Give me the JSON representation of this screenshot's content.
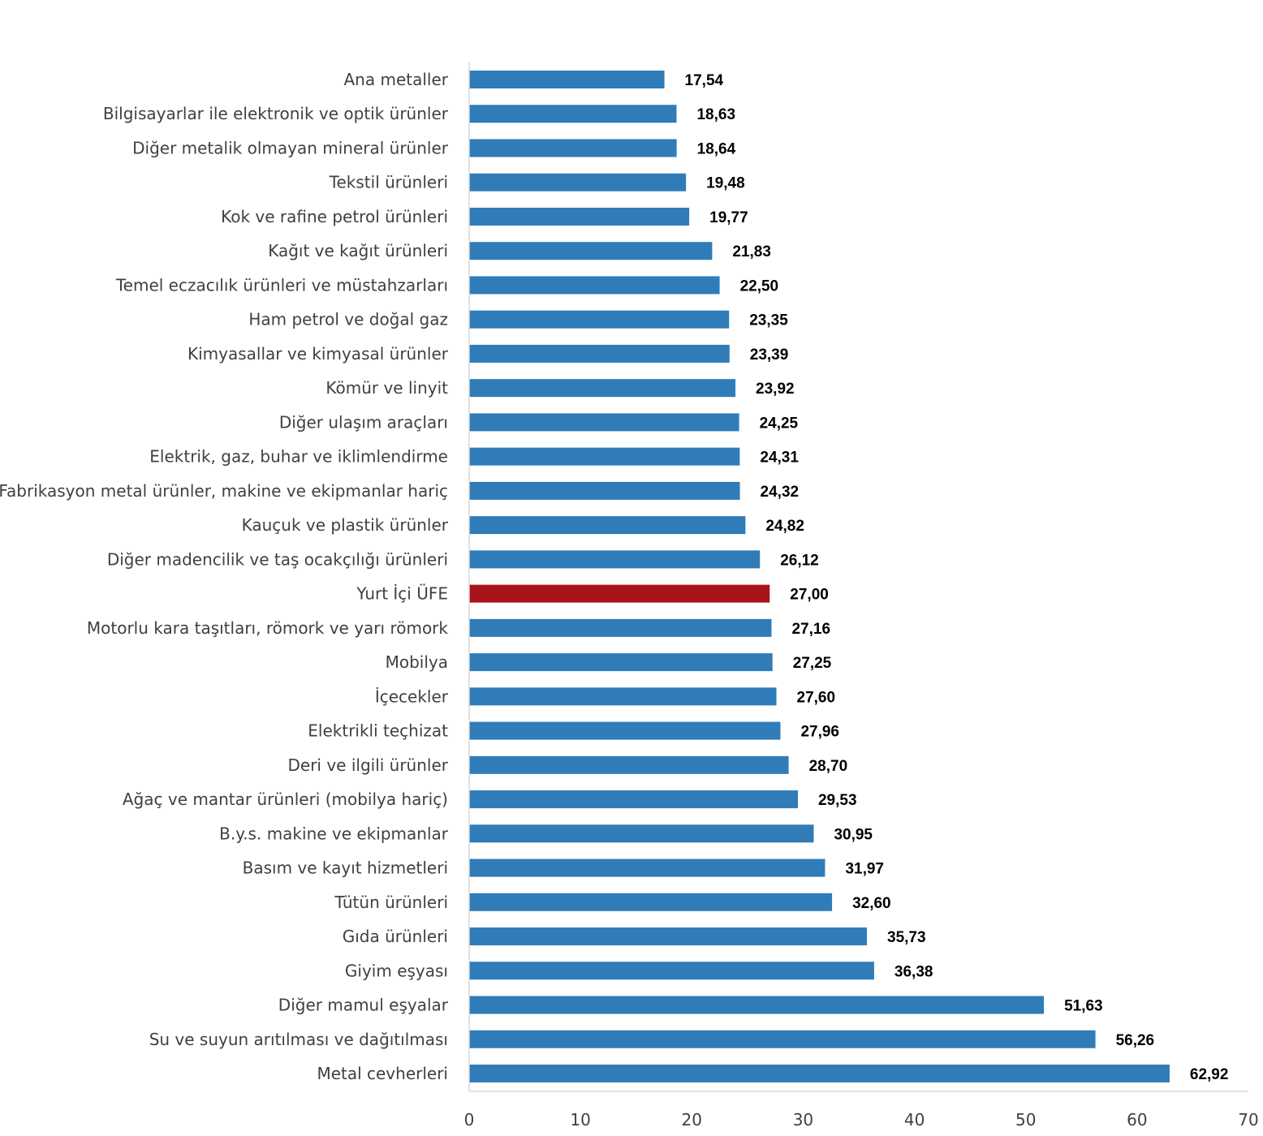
{
  "chart_data": {
    "type": "bar",
    "orientation": "horizontal",
    "title": "",
    "xlabel": "",
    "ylabel": "",
    "xlim": [
      0,
      70
    ],
    "xticks": [
      0,
      10,
      20,
      30,
      40,
      50,
      60,
      70
    ],
    "grid": false,
    "legend": "none",
    "colors": {
      "default": "#2f7cb8",
      "highlight": "#a8141b"
    },
    "highlight_category": "Yurt İçi ÜFE",
    "categories": [
      "Ana metaller",
      "Bilgisayarlar ile elektronik ve optik ürünler",
      "Diğer metalik olmayan mineral ürünler",
      "Tekstil ürünleri",
      "Kok ve rafine petrol ürünleri",
      "Kağıt ve kağıt ürünleri",
      "Temel eczacılık ürünleri ve müstahzarları",
      "Ham petrol ve doğal gaz",
      "Kimyasallar ve kimyasal ürünler",
      "Kömür ve linyit",
      "Diğer ulaşım araçları",
      "Elektrik, gaz, buhar ve iklimlendirme",
      "Fabrikasyon metal ürünler, makine ve ekipmanlar hariç",
      "Kauçuk ve plastik ürünler",
      "Diğer madencilik ve taş ocakçılığı ürünleri",
      "Yurt İçi ÜFE",
      "Motorlu kara taşıtları, römork ve yarı römork",
      "Mobilya",
      "İçecekler",
      "Elektrikli teçhizat",
      "Deri ve ilgili ürünler",
      "Ağaç ve mantar ürünleri (mobilya hariç)",
      "B.y.s. makine ve ekipmanlar",
      "Basım ve kayıt hizmetleri",
      "Tütün ürünleri",
      "Gıda ürünleri",
      "Giyim eşyası",
      "Diğer mamul eşyalar",
      "Su ve suyun arıtılması ve dağıtılması",
      "Metal cevherleri"
    ],
    "values": [
      17.54,
      18.63,
      18.64,
      19.48,
      19.77,
      21.83,
      22.5,
      23.35,
      23.39,
      23.92,
      24.25,
      24.31,
      24.32,
      24.82,
      26.12,
      27.0,
      27.16,
      27.25,
      27.6,
      27.96,
      28.7,
      29.53,
      30.95,
      31.97,
      32.6,
      35.73,
      36.38,
      51.63,
      56.26,
      62.92
    ],
    "data_labels": [
      "17,54",
      "18,63",
      "18,64",
      "19,48",
      "19,77",
      "21,83",
      "22,50",
      "23,35",
      "23,39",
      "23,92",
      "24,25",
      "24,31",
      "24,32",
      "24,82",
      "26,12",
      "27,00",
      "27,16",
      "27,25",
      "27,60",
      "27,96",
      "28,70",
      "29,53",
      "30,95",
      "31,97",
      "32,60",
      "35,73",
      "36,38",
      "51,63",
      "56,26",
      "62,92"
    ]
  }
}
